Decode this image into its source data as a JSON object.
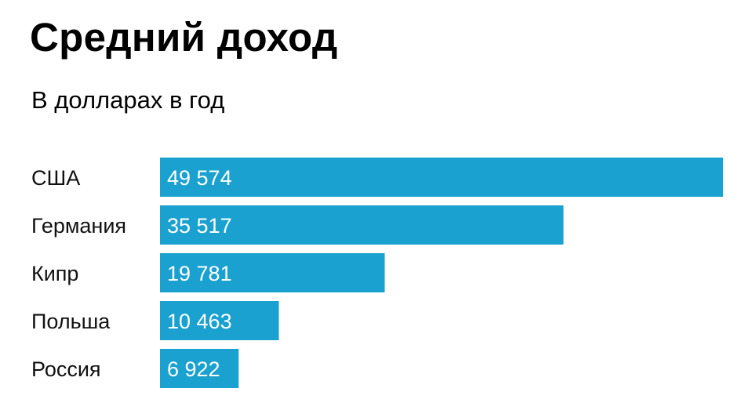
{
  "title": "Средний доход",
  "subtitle": "В долларах в год",
  "chart_data": {
    "type": "bar",
    "orientation": "horizontal",
    "title": "Средний доход",
    "subtitle": "В долларах в год",
    "categories": [
      "США",
      "Германия",
      "Кипр",
      "Польша",
      "Россия"
    ],
    "values": [
      49574,
      35517,
      19781,
      10463,
      6922
    ],
    "value_labels": [
      "49 574",
      "35 517",
      "19 781",
      "10 463",
      "6 922"
    ],
    "xlim": [
      0,
      49574
    ],
    "bar_color": "#1aa1cf",
    "grid": false,
    "legend": "none"
  }
}
